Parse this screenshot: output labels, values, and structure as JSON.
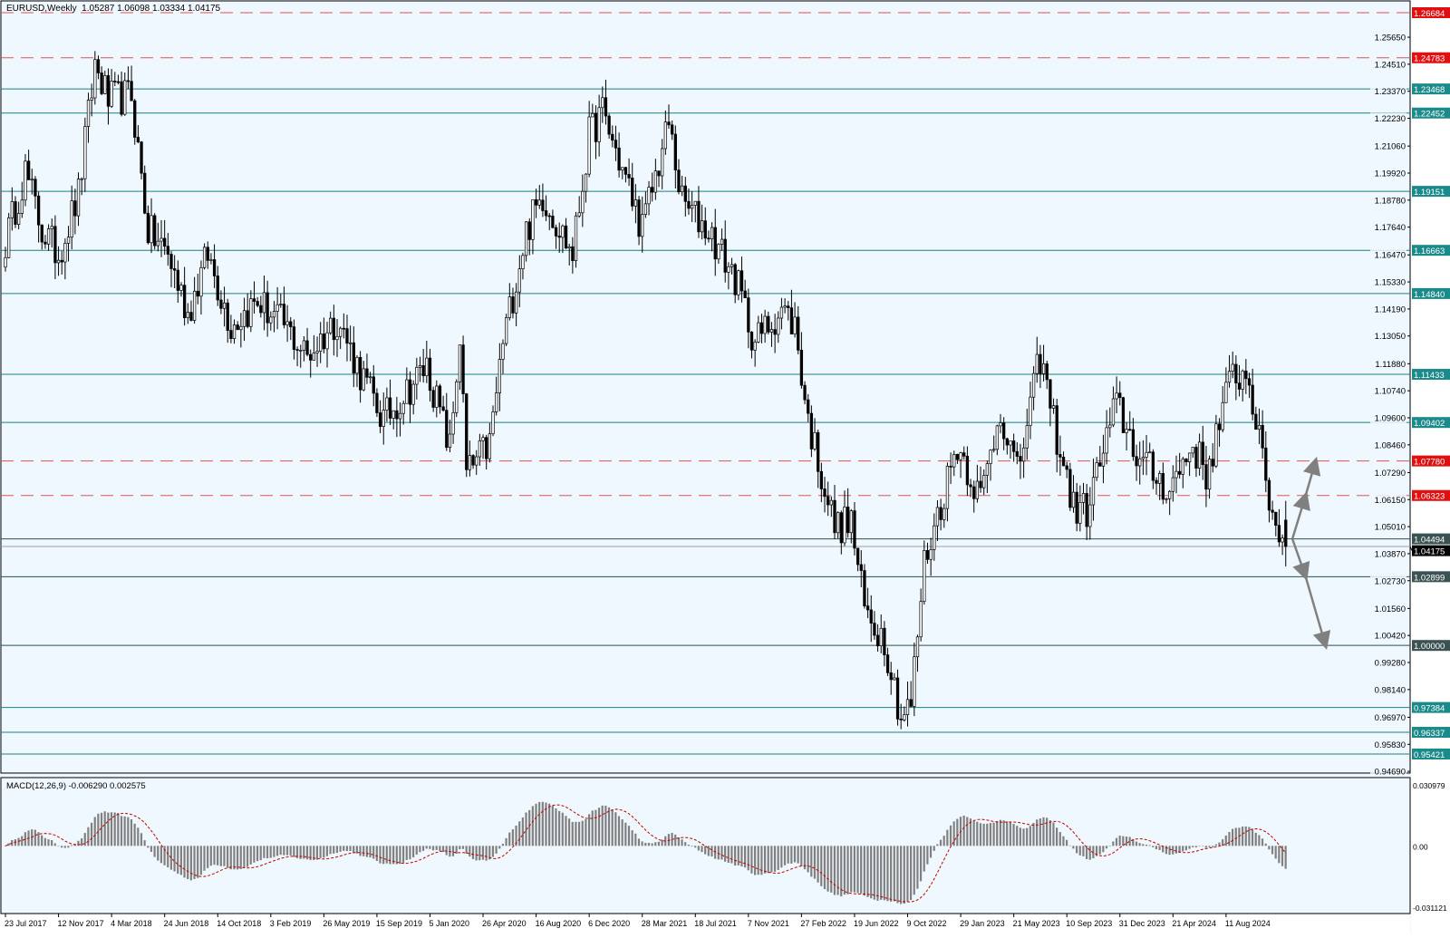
{
  "window": {
    "symbol": "EURUSD",
    "timeframe": "Weekly",
    "ohlc_readout": "EURUSD,Weekly  1.05287 1.06098 1.03334 1.04175"
  },
  "indicator": {
    "label": "MACD(12,26,9) -0.006290 0.002575",
    "params": [
      12,
      26,
      9
    ],
    "main_value": -0.00629,
    "signal_value": 0.002575,
    "axis_labels": [
      "0.030979",
      "0.00",
      "-0.031121"
    ],
    "axis_values": [
      0.030979,
      0,
      -0.031121
    ],
    "histogram_color": "#808080",
    "signal_color": "#c00000"
  },
  "chart_data": {
    "type": "candlestick",
    "symbol": "EURUSD",
    "timeframe": "Weekly",
    "ylim": [
      0.944,
      1.2735
    ],
    "last_bar": {
      "open": 1.05287,
      "high": 1.06098,
      "low": 1.03334,
      "close": 1.04175
    },
    "price_ticks": [
      "1.25650",
      "1.24510",
      "1.23370",
      "1.22230",
      "1.21060",
      "1.19920",
      "1.18780",
      "1.17640",
      "1.16470",
      "1.15330",
      "1.14190",
      "1.13050",
      "1.11880",
      "1.10740",
      "1.09600",
      "1.08460",
      "1.07290",
      "1.06150",
      "1.05010",
      "1.03870",
      "1.02730",
      "1.01560",
      "1.00420",
      "0.99280",
      "0.98140",
      "0.96970",
      "0.95830",
      "0.94690"
    ],
    "date_ticks": [
      "23 Jul 2017",
      "12 Nov 2017",
      "4 Mar 2018",
      "24 Jun 2018",
      "14 Oct 2018",
      "3 Feb 2019",
      "26 May 2019",
      "15 Sep 2019",
      "5 Jan 2020",
      "26 Apr 2020",
      "16 Aug 2020",
      "6 Dec 2020",
      "28 Mar 2021",
      "18 Jul 2021",
      "7 Nov 2021",
      "27 Feb 2022",
      "19 Jun 2022",
      "9 Oct 2022",
      "29 Jan 2023",
      "21 May 2023",
      "10 Sep 2023",
      "31 Dec 2023",
      "21 Apr 2024",
      "11 Aug 2024"
    ],
    "close_path": [
      [
        "2017-07-23",
        1.17
      ],
      [
        "2017-09-03",
        1.2
      ],
      [
        "2017-10-08",
        1.175
      ],
      [
        "2017-11-12",
        1.165
      ],
      [
        "2017-12-24",
        1.19
      ],
      [
        "2018-01-28",
        1.245
      ],
      [
        "2018-02-25",
        1.23
      ],
      [
        "2018-04-15",
        1.232
      ],
      [
        "2018-05-20",
        1.175
      ],
      [
        "2018-07-01",
        1.165
      ],
      [
        "2018-08-12",
        1.14
      ],
      [
        "2018-09-23",
        1.165
      ],
      [
        "2018-11-11",
        1.135
      ],
      [
        "2019-01-06",
        1.145
      ],
      [
        "2019-03-03",
        1.135
      ],
      [
        "2019-04-21",
        1.122
      ],
      [
        "2019-06-23",
        1.138
      ],
      [
        "2019-08-11",
        1.115
      ],
      [
        "2019-09-29",
        1.095
      ],
      [
        "2019-12-29",
        1.118
      ],
      [
        "2020-02-16",
        1.083
      ],
      [
        "2020-03-08",
        1.13
      ],
      [
        "2020-03-22",
        1.072
      ],
      [
        "2020-05-10",
        1.085
      ],
      [
        "2020-06-07",
        1.128
      ],
      [
        "2020-07-26",
        1.175
      ],
      [
        "2020-08-30",
        1.19
      ],
      [
        "2020-11-01",
        1.165
      ],
      [
        "2020-12-06",
        1.215
      ],
      [
        "2021-01-03",
        1.225
      ],
      [
        "2021-03-28",
        1.176
      ],
      [
        "2021-05-23",
        1.22
      ],
      [
        "2021-06-20",
        1.187
      ],
      [
        "2021-08-15",
        1.175
      ],
      [
        "2021-10-10",
        1.155
      ],
      [
        "2021-11-21",
        1.128
      ],
      [
        "2022-01-16",
        1.142
      ],
      [
        "2022-02-13",
        1.135
      ],
      [
        "2022-03-13",
        1.095
      ],
      [
        "2022-05-08",
        1.05
      ],
      [
        "2022-06-12",
        1.052
      ],
      [
        "2022-07-10",
        1.015
      ],
      [
        "2022-08-21",
        1.003
      ],
      [
        "2022-09-25",
        0.97
      ],
      [
        "2022-10-16",
        0.975
      ],
      [
        "2022-11-13",
        1.035
      ],
      [
        "2023-01-22",
        1.085
      ],
      [
        "2023-03-12",
        1.062
      ],
      [
        "2023-04-23",
        1.1
      ],
      [
        "2023-05-28",
        1.072
      ],
      [
        "2023-07-16",
        1.122
      ],
      [
        "2023-08-20",
        1.088
      ],
      [
        "2023-09-24",
        1.058
      ],
      [
        "2023-10-22",
        1.057
      ],
      [
        "2023-12-24",
        1.102
      ],
      [
        "2024-02-11",
        1.078
      ],
      [
        "2024-04-14",
        1.066
      ],
      [
        "2024-06-02",
        1.085
      ],
      [
        "2024-06-30",
        1.072
      ],
      [
        "2024-08-25",
        1.115
      ],
      [
        "2024-09-29",
        1.113
      ],
      [
        "2024-10-20",
        1.085
      ],
      [
        "2024-11-17",
        1.055
      ],
      [
        "2024-12-15",
        1.04175
      ]
    ],
    "levels": [
      {
        "price": 1.26684,
        "label": "1.26684",
        "style": "dashed",
        "color": "#e03030"
      },
      {
        "price": 1.24783,
        "label": "1.24783",
        "style": "dashed",
        "color": "#e03030"
      },
      {
        "price": 1.23468,
        "label": "1.23468",
        "style": "solid",
        "color": "#1a8080"
      },
      {
        "price": 1.22452,
        "label": "1.22452",
        "style": "solid",
        "color": "#1a8080"
      },
      {
        "price": 1.19151,
        "label": "1.19151",
        "style": "solid",
        "color": "#1a8080"
      },
      {
        "price": 1.16663,
        "label": "1.16663",
        "style": "solid",
        "color": "#1a8080"
      },
      {
        "price": 1.1484,
        "label": "1.14840",
        "style": "solid",
        "color": "#1a8080"
      },
      {
        "price": 1.11433,
        "label": "1.11433",
        "style": "solid",
        "color": "#1a8080"
      },
      {
        "price": 1.09402,
        "label": "1.09402",
        "style": "solid",
        "color": "#1a8080"
      },
      {
        "price": 1.0778,
        "label": "1.07780",
        "style": "dashed",
        "color": "#e03030"
      },
      {
        "price": 1.06323,
        "label": "1.06323",
        "style": "dashed",
        "color": "#e03030"
      },
      {
        "price": 1.04494,
        "label": "1.04494",
        "style": "solid",
        "color": "#2f4f4f"
      },
      {
        "price": 1.04175,
        "label": "1.04175",
        "style": "bid",
        "color": "#000000"
      },
      {
        "price": 1.02899,
        "label": "1.02899",
        "style": "solid",
        "color": "#2f4f4f"
      },
      {
        "price": 1.0,
        "label": "1.00000",
        "style": "solid",
        "color": "#2f4f4f"
      },
      {
        "price": 0.97384,
        "label": "0.97384",
        "style": "solid",
        "color": "#1a8080"
      },
      {
        "price": 0.96337,
        "label": "0.96337",
        "style": "solid",
        "color": "#1a8080"
      },
      {
        "price": 0.95421,
        "label": "0.95421",
        "style": "solid",
        "color": "#1a8080"
      }
    ],
    "scenario_arrows": {
      "origin": {
        "date": "2024-12-29",
        "price": 1.04494
      },
      "up": [
        {
          "date": "2025-01-26",
          "price": 1.06323
        },
        {
          "date": "2025-02-16",
          "price": 1.0778
        }
      ],
      "down": [
        {
          "date": "2025-01-26",
          "price": 1.02899
        },
        {
          "date": "2025-03-09",
          "price": 1.0
        }
      ],
      "color": "#808080"
    }
  }
}
